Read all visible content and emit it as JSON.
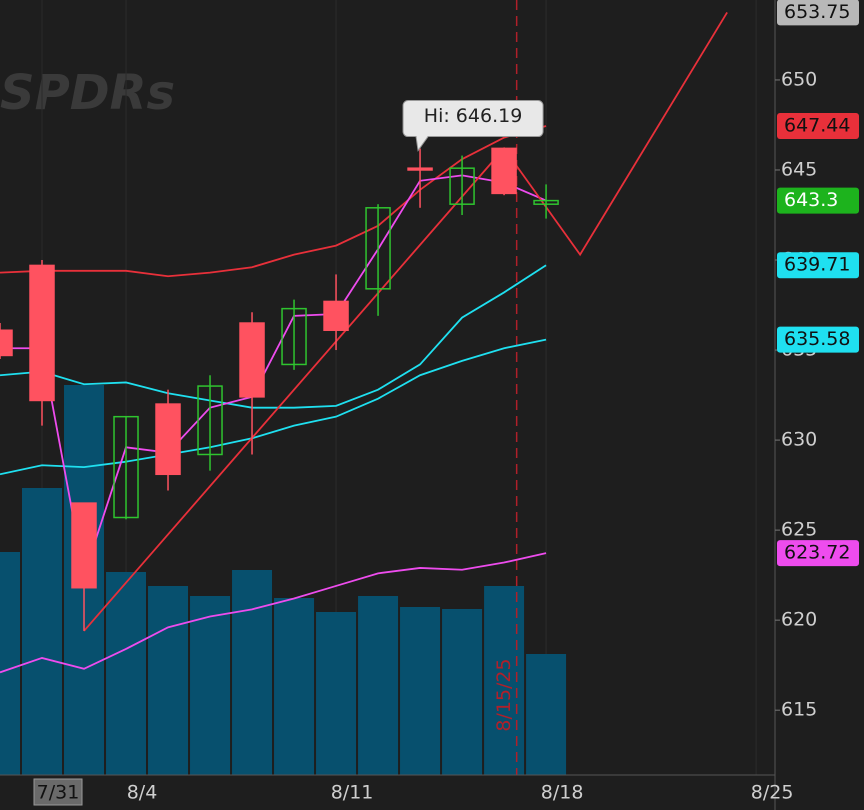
{
  "chart_data": {
    "type": "candlestick",
    "watermark": "SPDRs",
    "open": [
      636.1,
      639.7,
      626.5,
      625.7,
      632.0,
      629.2,
      636.5,
      634.2,
      637.7,
      638.4,
      645.1,
      643.1,
      646.2,
      643.1
    ],
    "high": [
      636.5,
      640.0,
      626.5,
      631.3,
      632.8,
      633.6,
      637.1,
      637.8,
      639.2,
      643.1,
      646.19,
      645.8,
      646.1,
      644.2
    ],
    "low": [
      634.5,
      630.8,
      619.4,
      625.6,
      627.2,
      628.3,
      629.2,
      633.9,
      635.0,
      636.9,
      642.9,
      642.5,
      643.6,
      642.3
    ],
    "close": [
      634.7,
      632.2,
      621.8,
      631.3,
      628.1,
      633.0,
      632.4,
      637.3,
      636.1,
      642.9,
      645.0,
      645.1,
      643.7,
      643.3
    ],
    "up_color": "#2fc42f",
    "down_color": "#ff5260",
    "volume": [
      223,
      287,
      390,
      203,
      189,
      179,
      205,
      177,
      163,
      179,
      168,
      166,
      189,
      121
    ],
    "volume_color": "#07506e",
    "vlim": [
      0,
      775
    ],
    "last_label_color": "#1db31d",
    "series": [
      {
        "color": "#e8303a",
        "last_label": true,
        "values": [
          639.3,
          639.4,
          639.4,
          639.4,
          639.1,
          639.3,
          639.6,
          640.3,
          640.8,
          641.9,
          643.9,
          645.6,
          646.8,
          647.44
        ]
      },
      {
        "color": "#1fe0f0",
        "last_label": true,
        "values": [
          633.6,
          633.8,
          633.1,
          633.2,
          632.6,
          632.2,
          631.8,
          631.8,
          631.9,
          632.8,
          634.2,
          636.8,
          638.2,
          639.71
        ]
      },
      {
        "color": "#1fe0f0",
        "last_label": true,
        "values": [
          628.1,
          628.6,
          628.5,
          628.8,
          629.2,
          629.6,
          630.1,
          630.8,
          631.3,
          632.3,
          633.6,
          634.4,
          635.1,
          635.58
        ]
      },
      {
        "color": "#ee4cee",
        "last_label": true,
        "values": [
          617.1,
          617.9,
          617.3,
          618.4,
          619.6,
          620.2,
          620.6,
          621.2,
          621.9,
          622.6,
          622.9,
          622.8,
          623.2,
          623.72
        ]
      },
      {
        "color": "#ee4cee",
        "last_label": false,
        "values": [
          635.1,
          635.1,
          622.5,
          629.6,
          629.3,
          631.8,
          632.4,
          636.9,
          637.0,
          640.6,
          644.4,
          644.7,
          644.3,
          643.3
        ]
      },
      {
        "color": "#e8303a",
        "last_label": true,
        "label_color": "#b8b8b8",
        "x": [
          2,
          12,
          13.81,
          17.31
        ],
        "values": [
          619.4,
          646.2,
          640.3,
          653.75
        ]
      }
    ],
    "annotation": {
      "text": "Hi: 646.19",
      "x": 10,
      "y": 646.19
    },
    "marker": {
      "label": "8/15/25",
      "x": 12.3
    },
    "xlim": [
      0,
      18.45
    ],
    "xticks": [
      {
        "value": 1,
        "label": "7/31"
      },
      {
        "value": 3,
        "label": "8/4"
      },
      {
        "value": 8,
        "label": "8/11"
      },
      {
        "value": 13,
        "label": "8/18"
      },
      {
        "value": 18,
        "label": "8/25"
      }
    ],
    "ylim": [
      611.4,
      654.44
    ],
    "yticks": [
      615,
      620,
      625,
      630,
      635,
      640,
      645,
      650
    ]
  }
}
